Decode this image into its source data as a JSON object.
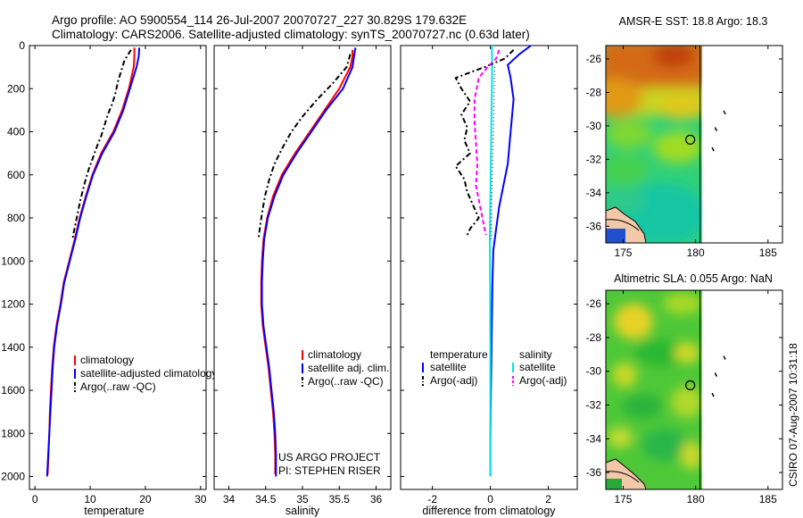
{
  "header": {
    "title_line1": "Argo profile: AO 5900554_114 26-Jul-2007 20070727_227 30.829S 179.632E",
    "title_line2": "Climatology: CARS2006. Satellite-adjusted climatology: synTS_20070727.nc (0.63d later)"
  },
  "footer": {
    "project_line1": "US ARGO PROJECT",
    "project_line2": "PI: STEPHEN RISER",
    "stamp": "CSIRO 07-Aug-2007 10:31:18"
  },
  "colors": {
    "climatology": "#ff0000",
    "satellite": "#0000ff",
    "argo": "#000000",
    "diff_sat_sal": "#00e5e5",
    "diff_argo_sal": "#ff00ff"
  },
  "chart_data": [
    {
      "type": "line",
      "name": "temperature-profile",
      "xlabel": "temperature",
      "ylabel": "",
      "xlim": [
        -1,
        31
      ],
      "ylim": [
        2060,
        0
      ],
      "xticks": [
        0,
        10,
        20,
        30
      ],
      "yticks": [
        0,
        200,
        400,
        600,
        800,
        1000,
        1200,
        1400,
        1600,
        1800,
        2000
      ],
      "legend": [
        "climatology",
        "satellite-adjusted climatology",
        "Argo(..raw -QC)"
      ],
      "series": [
        {
          "name": "climatology",
          "color_key": "climatology",
          "style": "solid",
          "points": [
            [
              18.0,
              10
            ],
            [
              18.0,
              50
            ],
            [
              17.9,
              100
            ],
            [
              17.0,
              200
            ],
            [
              15.8,
              300
            ],
            [
              14.2,
              400
            ],
            [
              12.0,
              500
            ],
            [
              10.4,
              600
            ],
            [
              9.2,
              700
            ],
            [
              8.1,
              800
            ],
            [
              7.2,
              900
            ],
            [
              6.2,
              1000
            ],
            [
              5.2,
              1100
            ],
            [
              4.6,
              1200
            ],
            [
              3.9,
              1300
            ],
            [
              3.4,
              1400
            ],
            [
              3.1,
              1500
            ],
            [
              2.9,
              1600
            ],
            [
              2.7,
              1700
            ],
            [
              2.6,
              1800
            ],
            [
              2.45,
              1900
            ],
            [
              2.3,
              1990
            ]
          ]
        },
        {
          "name": "satellite-adjusted climatology",
          "color_key": "satellite",
          "style": "solid",
          "points": [
            [
              18.9,
              10
            ],
            [
              18.8,
              50
            ],
            [
              18.4,
              100
            ],
            [
              17.2,
              200
            ],
            [
              16.0,
              300
            ],
            [
              14.4,
              400
            ],
            [
              12.2,
              500
            ],
            [
              10.5,
              600
            ],
            [
              9.3,
              700
            ],
            [
              8.2,
              800
            ],
            [
              7.3,
              900
            ],
            [
              6.3,
              1000
            ],
            [
              5.3,
              1100
            ],
            [
              4.7,
              1200
            ],
            [
              4.0,
              1300
            ],
            [
              3.5,
              1400
            ],
            [
              3.2,
              1500
            ],
            [
              3.0,
              1600
            ],
            [
              2.8,
              1700
            ],
            [
              2.6,
              1800
            ],
            [
              2.4,
              1900
            ],
            [
              2.2,
              2000
            ]
          ]
        },
        {
          "name": "Argo(..raw -QC)",
          "color_key": "argo",
          "style": "dashdot",
          "points": [
            [
              17.4,
              20
            ],
            [
              16.2,
              70
            ],
            [
              15.6,
              120
            ],
            [
              15.0,
              170
            ],
            [
              14.6,
              220
            ],
            [
              14.0,
              270
            ],
            [
              13.2,
              320
            ],
            [
              12.6,
              370
            ],
            [
              12.0,
              420
            ],
            [
              11.2,
              470
            ],
            [
              10.5,
              520
            ],
            [
              9.8,
              570
            ],
            [
              9.2,
              620
            ],
            [
              8.7,
              670
            ],
            [
              8.2,
              720
            ],
            [
              7.8,
              770
            ],
            [
              7.4,
              820
            ],
            [
              7.0,
              870
            ],
            [
              6.8,
              900
            ]
          ]
        }
      ]
    },
    {
      "type": "line",
      "name": "salinity-profile",
      "xlabel": "salinity",
      "ylabel": "",
      "xlim": [
        33.8,
        36.2
      ],
      "ylim": [
        2060,
        0
      ],
      "xticks": [
        34,
        34.5,
        35,
        35.5,
        36
      ],
      "yticks": [],
      "legend": [
        "climatology",
        "satellite adj. clim.",
        "Argo(..raw -QC)"
      ],
      "series": [
        {
          "name": "climatology",
          "color_key": "climatology",
          "style": "solid",
          "points": [
            [
              35.68,
              20
            ],
            [
              35.68,
              50
            ],
            [
              35.65,
              100
            ],
            [
              35.5,
              200
            ],
            [
              35.3,
              300
            ],
            [
              35.1,
              400
            ],
            [
              34.9,
              500
            ],
            [
              34.72,
              600
            ],
            [
              34.6,
              700
            ],
            [
              34.52,
              800
            ],
            [
              34.47,
              900
            ],
            [
              34.45,
              1000
            ],
            [
              34.44,
              1100
            ],
            [
              34.44,
              1200
            ],
            [
              34.46,
              1300
            ],
            [
              34.5,
              1400
            ],
            [
              34.54,
              1500
            ],
            [
              34.57,
              1600
            ],
            [
              34.6,
              1700
            ],
            [
              34.62,
              1800
            ],
            [
              34.63,
              1900
            ],
            [
              34.63,
              1990
            ]
          ]
        },
        {
          "name": "satellite adj. clim.",
          "color_key": "satellite",
          "style": "solid",
          "points": [
            [
              35.72,
              10
            ],
            [
              35.7,
              50
            ],
            [
              35.68,
              100
            ],
            [
              35.55,
              200
            ],
            [
              35.32,
              300
            ],
            [
              35.12,
              400
            ],
            [
              34.92,
              500
            ],
            [
              34.74,
              600
            ],
            [
              34.62,
              700
            ],
            [
              34.53,
              800
            ],
            [
              34.48,
              900
            ],
            [
              34.46,
              1000
            ],
            [
              34.45,
              1100
            ],
            [
              34.45,
              1200
            ],
            [
              34.47,
              1300
            ],
            [
              34.51,
              1400
            ],
            [
              34.55,
              1500
            ],
            [
              34.58,
              1600
            ],
            [
              34.61,
              1700
            ],
            [
              34.63,
              1800
            ],
            [
              34.64,
              1900
            ],
            [
              34.64,
              2000
            ]
          ]
        },
        {
          "name": "Argo(..raw -QC)",
          "color_key": "argo",
          "style": "dashdot",
          "points": [
            [
              35.65,
              40
            ],
            [
              35.6,
              100
            ],
            [
              35.4,
              180
            ],
            [
              35.2,
              250
            ],
            [
              35.0,
              330
            ],
            [
              34.85,
              400
            ],
            [
              34.72,
              480
            ],
            [
              34.62,
              550
            ],
            [
              34.55,
              620
            ],
            [
              34.49,
              700
            ],
            [
              34.45,
              780
            ],
            [
              34.42,
              850
            ],
            [
              34.4,
              900
            ]
          ]
        }
      ]
    },
    {
      "type": "line",
      "name": "difference-from-climatology",
      "xlabel": "difference from climatology",
      "ylabel": "",
      "xlim": [
        -3.1,
        3.0
      ],
      "ylim": [
        2060,
        0
      ],
      "xticks": [
        -2,
        0,
        2
      ],
      "yticks": [],
      "legend_temperature_heading": "temperature",
      "legend_salinity_heading": "salinity",
      "legend": [
        "satellite",
        "Argo(-adj)",
        "satellite",
        "Argo(-adj)"
      ],
      "series": [
        {
          "name": "temperature satellite",
          "color_key": "satellite",
          "style": "solid",
          "points": [
            [
              1.4,
              0
            ],
            [
              1.0,
              40
            ],
            [
              0.6,
              90
            ],
            [
              0.7,
              150
            ],
            [
              0.8,
              250
            ],
            [
              0.7,
              400
            ],
            [
              0.6,
              550
            ],
            [
              0.45,
              650
            ],
            [
              0.3,
              750
            ],
            [
              0.2,
              850
            ],
            [
              0.1,
              950
            ],
            [
              0.07,
              1100
            ],
            [
              0.05,
              1300
            ],
            [
              0.03,
              1500
            ],
            [
              0.01,
              1700
            ],
            [
              0.0,
              1850
            ],
            [
              0.0,
              2000
            ]
          ]
        },
        {
          "name": "salinity satellite",
          "color_key": "diff_sat_sal",
          "style": "solid",
          "points": [
            [
              0.05,
              0
            ],
            [
              0.06,
              100
            ],
            [
              0.04,
              300
            ],
            [
              0.02,
              500
            ],
            [
              0.0,
              700
            ],
            [
              -0.02,
              900
            ],
            [
              -0.01,
              1100
            ],
            [
              0.0,
              1400
            ],
            [
              0.0,
              1700
            ],
            [
              0.0,
              2000
            ]
          ]
        },
        {
          "name": "temperature Argo(-adj)",
          "color_key": "argo",
          "style": "dashdot",
          "points": [
            [
              0.8,
              20
            ],
            [
              0.5,
              60
            ],
            [
              -0.2,
              100
            ],
            [
              -1.2,
              150
            ],
            [
              -1.0,
              200
            ],
            [
              -0.7,
              260
            ],
            [
              -1.0,
              320
            ],
            [
              -0.8,
              380
            ],
            [
              -0.9,
              440
            ],
            [
              -0.7,
              500
            ],
            [
              -1.2,
              560
            ],
            [
              -0.9,
              620
            ],
            [
              -0.8,
              680
            ],
            [
              -0.6,
              740
            ],
            [
              -0.4,
              800
            ],
            [
              -0.7,
              850
            ],
            [
              -0.8,
              880
            ]
          ]
        },
        {
          "name": "salinity Argo(-adj)",
          "color_key": "diff_argo_sal",
          "style": "dashed",
          "points": [
            [
              0.3,
              20
            ],
            [
              0.2,
              60
            ],
            [
              -0.1,
              100
            ],
            [
              -0.4,
              150
            ],
            [
              -0.55,
              250
            ],
            [
              -0.55,
              350
            ],
            [
              -0.5,
              450
            ],
            [
              -0.45,
              550
            ],
            [
              -0.5,
              650
            ],
            [
              -0.35,
              750
            ],
            [
              -0.2,
              850
            ],
            [
              -0.15,
              880
            ]
          ]
        },
        {
          "name": "zero reference",
          "color_key": "argo",
          "style": "dotted",
          "points": [
            [
              0.15,
              100
            ],
            [
              0.1,
              400
            ],
            [
              0.05,
              700
            ],
            [
              0.02,
              900
            ]
          ]
        }
      ]
    },
    {
      "type": "heatmap",
      "name": "amsr-e-sst-map",
      "title": "AMSR-E SST: 18.8 Argo: 18.3",
      "xlim": [
        173.8,
        186.0
      ],
      "ylim": [
        -37.0,
        -25.2
      ],
      "xticks": [
        175,
        180,
        185
      ],
      "yticks": [
        -26,
        -28,
        -30,
        -32,
        -34,
        -36
      ],
      "data_x_extent": [
        173.8,
        180.3
      ],
      "argo_position": [
        179.632,
        -30.829
      ],
      "islands": [
        [
          182.0,
          -29.2
        ],
        [
          181.4,
          -30.2
        ],
        [
          181.2,
          -31.4
        ]
      ]
    },
    {
      "type": "heatmap",
      "name": "altimetric-sla-map",
      "title": "Altimetric SLA: 0.055 Argo: NaN",
      "xlim": [
        173.8,
        186.0
      ],
      "ylim": [
        -37.0,
        -25.2
      ],
      "xticks": [
        175,
        180,
        185
      ],
      "yticks": [
        -26,
        -28,
        -30,
        -32,
        -34,
        -36
      ],
      "data_x_extent": [
        173.8,
        180.3
      ],
      "argo_position": [
        179.632,
        -30.829
      ],
      "islands": [
        [
          182.0,
          -29.2
        ],
        [
          181.4,
          -30.2
        ],
        [
          181.2,
          -31.4
        ]
      ]
    }
  ]
}
